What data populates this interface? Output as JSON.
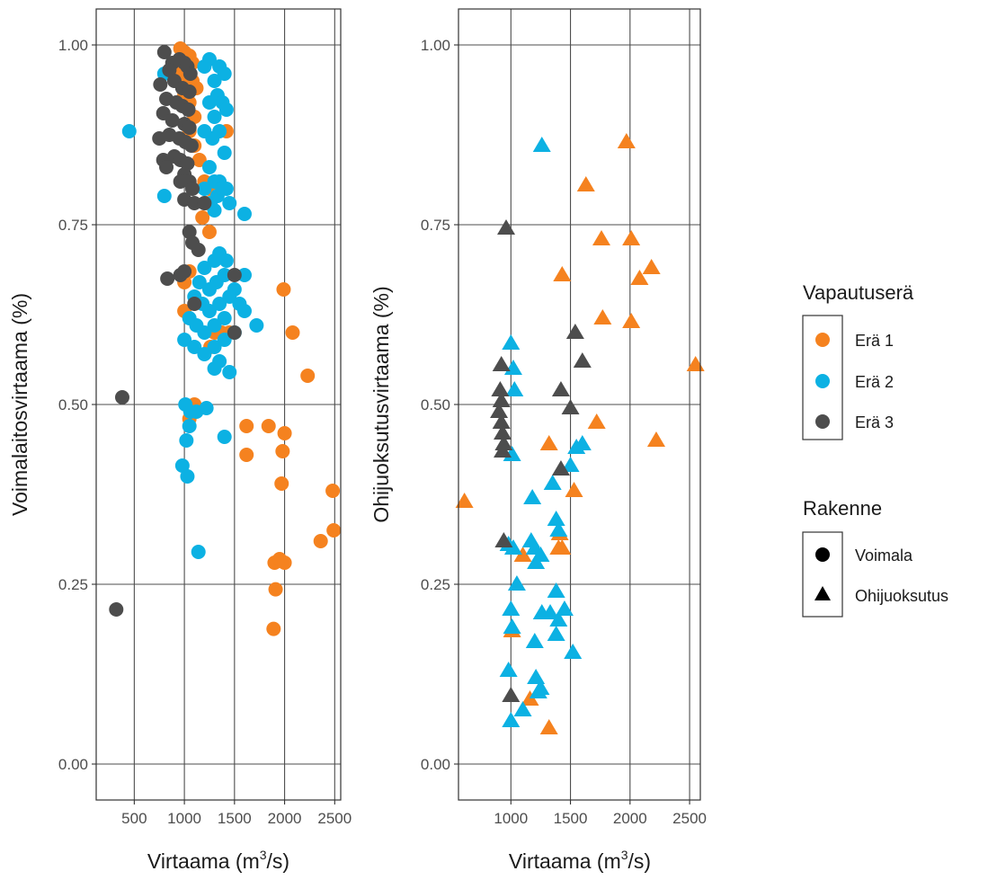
{
  "legend": {
    "group_title": "Vapautuserä",
    "group_items": [
      {
        "label": "Erä 1",
        "color": "#F5821F"
      },
      {
        "label": "Erä 2",
        "color": "#0CB1E3"
      },
      {
        "label": "Erä 3",
        "color": "#4D4D4D"
      }
    ],
    "shape_title": "Rakenne",
    "shape_items": [
      {
        "label": "Voimala",
        "shape": "circle"
      },
      {
        "label": "Ohijuoksutus",
        "shape": "triangle"
      }
    ]
  },
  "chart_data": [
    {
      "type": "scatter",
      "xlabel_main": "Virtaama (m",
      "xlabel_sup": "3",
      "xlabel_tail": "/s)",
      "ylabel": "Voimalaitosvirtaama (%)",
      "xlim": [
        120,
        2560
      ],
      "ylim": [
        -0.05,
        1.05
      ],
      "x_ticks": [
        500,
        1000,
        1500,
        2000,
        2500
      ],
      "x_tick_labels": [
        "500",
        "1000",
        "1500",
        "2000",
        "2500"
      ],
      "y_ticks": [
        0,
        0.25,
        0.5,
        0.75,
        1.0
      ],
      "y_tick_labels": [
        "0.00",
        "0.25",
        "0.50",
        "0.75",
        "1.00"
      ],
      "grid": true,
      "marker": "circle",
      "series": [
        {
          "name": "Erä 1",
          "points": [
            [
              960,
              0.995
            ],
            [
              1000,
              0.99
            ],
            [
              1050,
              0.985
            ],
            [
              1080,
              0.975
            ],
            [
              900,
              0.97
            ],
            [
              950,
              0.96
            ],
            [
              1000,
              0.955
            ],
            [
              1080,
              0.95
            ],
            [
              1120,
              0.94
            ],
            [
              1000,
              0.93
            ],
            [
              1050,
              0.92
            ],
            [
              1100,
              0.9
            ],
            [
              1050,
              0.88
            ],
            [
              1100,
              0.86
            ],
            [
              1150,
              0.84
            ],
            [
              1200,
              0.81
            ],
            [
              1250,
              0.8
            ],
            [
              1220,
              0.78
            ],
            [
              1180,
              0.76
            ],
            [
              1250,
              0.74
            ],
            [
              1420,
              0.88
            ],
            [
              1300,
              0.6
            ],
            [
              1260,
              0.58
            ],
            [
              1370,
              0.6
            ],
            [
              1450,
              0.6
            ],
            [
              1100,
              0.5
            ],
            [
              1050,
              0.48
            ],
            [
              1050,
              0.685
            ],
            [
              1000,
              0.67
            ],
            [
              1000,
              0.63
            ],
            [
              1990,
              0.66
            ],
            [
              2080,
              0.6
            ],
            [
              2230,
              0.54
            ],
            [
              1620,
              0.47
            ],
            [
              1840,
              0.47
            ],
            [
              2000,
              0.46
            ],
            [
              1620,
              0.43
            ],
            [
              1980,
              0.435
            ],
            [
              1970,
              0.39
            ],
            [
              2480,
              0.38
            ],
            [
              2490,
              0.325
            ],
            [
              2360,
              0.31
            ],
            [
              1900,
              0.28
            ],
            [
              1950,
              0.285
            ],
            [
              2000,
              0.28
            ],
            [
              1910,
              0.243
            ],
            [
              1890,
              0.188
            ]
          ]
        },
        {
          "name": "Erä 2",
          "points": [
            [
              450,
              0.88
            ],
            [
              800,
              0.96
            ],
            [
              1200,
              0.97
            ],
            [
              1250,
              0.98
            ],
            [
              1300,
              0.95
            ],
            [
              1330,
              0.93
            ],
            [
              1350,
              0.97
            ],
            [
              1400,
              0.96
            ],
            [
              1250,
              0.92
            ],
            [
              1300,
              0.9
            ],
            [
              1380,
              0.92
            ],
            [
              1420,
              0.91
            ],
            [
              1200,
              0.88
            ],
            [
              1280,
              0.87
            ],
            [
              1350,
              0.88
            ],
            [
              1400,
              0.85
            ],
            [
              1250,
              0.83
            ],
            [
              1300,
              0.81
            ],
            [
              1350,
              0.81
            ],
            [
              1420,
              0.8
            ],
            [
              1200,
              0.8
            ],
            [
              1260,
              0.78
            ],
            [
              1330,
              0.79
            ],
            [
              1380,
              0.8
            ],
            [
              1450,
              0.78
            ],
            [
              1300,
              0.77
            ],
            [
              1600,
              0.765
            ],
            [
              800,
              0.79
            ],
            [
              1300,
              0.7
            ],
            [
              1350,
              0.71
            ],
            [
              1420,
              0.7
            ],
            [
              1200,
              0.69
            ],
            [
              1150,
              0.67
            ],
            [
              1250,
              0.66
            ],
            [
              1320,
              0.67
            ],
            [
              1400,
              0.68
            ],
            [
              1500,
              0.66
            ],
            [
              1600,
              0.68
            ],
            [
              1100,
              0.65
            ],
            [
              1180,
              0.64
            ],
            [
              1250,
              0.63
            ],
            [
              1350,
              0.64
            ],
            [
              1450,
              0.65
            ],
            [
              1550,
              0.64
            ],
            [
              1050,
              0.62
            ],
            [
              1120,
              0.61
            ],
            [
              1200,
              0.6
            ],
            [
              1300,
              0.61
            ],
            [
              1400,
              0.62
            ],
            [
              1500,
              0.6
            ],
            [
              1720,
              0.61
            ],
            [
              1000,
              0.59
            ],
            [
              1100,
              0.58
            ],
            [
              1200,
              0.57
            ],
            [
              1300,
              0.58
            ],
            [
              1400,
              0.59
            ],
            [
              1350,
              0.56
            ],
            [
              1300,
              0.55
            ],
            [
              1450,
              0.545
            ],
            [
              1010,
              0.5
            ],
            [
              1060,
              0.49
            ],
            [
              1120,
              0.49
            ],
            [
              1220,
              0.495
            ],
            [
              1050,
              0.47
            ],
            [
              1020,
              0.45
            ],
            [
              1400,
              0.455
            ],
            [
              980,
              0.415
            ],
            [
              1030,
              0.4
            ],
            [
              1140,
              0.295
            ],
            [
              1600,
              0.63
            ]
          ]
        },
        {
          "name": "Erä 3",
          "points": [
            [
              800,
              0.99
            ],
            [
              880,
              0.975
            ],
            [
              950,
              0.98
            ],
            [
              1000,
              0.975
            ],
            [
              1030,
              0.97
            ],
            [
              850,
              0.965
            ],
            [
              1060,
              0.96
            ],
            [
              760,
              0.945
            ],
            [
              900,
              0.95
            ],
            [
              980,
              0.94
            ],
            [
              1050,
              0.935
            ],
            [
              820,
              0.925
            ],
            [
              920,
              0.92
            ],
            [
              980,
              0.915
            ],
            [
              1040,
              0.91
            ],
            [
              790,
              0.905
            ],
            [
              880,
              0.895
            ],
            [
              1000,
              0.89
            ],
            [
              1050,
              0.885
            ],
            [
              750,
              0.87
            ],
            [
              850,
              0.875
            ],
            [
              950,
              0.87
            ],
            [
              1010,
              0.865
            ],
            [
              1070,
              0.86
            ],
            [
              790,
              0.84
            ],
            [
              900,
              0.845
            ],
            [
              960,
              0.84
            ],
            [
              1030,
              0.835
            ],
            [
              820,
              0.83
            ],
            [
              1000,
              0.82
            ],
            [
              1050,
              0.81
            ],
            [
              960,
              0.81
            ],
            [
              1080,
              0.8
            ],
            [
              1000,
              0.785
            ],
            [
              1100,
              0.78
            ],
            [
              1200,
              0.78
            ],
            [
              1050,
              0.74
            ],
            [
              1080,
              0.725
            ],
            [
              1140,
              0.715
            ],
            [
              960,
              0.68
            ],
            [
              830,
              0.675
            ],
            [
              1000,
              0.685
            ],
            [
              1500,
              0.68
            ],
            [
              1100,
              0.64
            ],
            [
              1500,
              0.6
            ],
            [
              380,
              0.51
            ],
            [
              320,
              0.215
            ]
          ]
        }
      ]
    },
    {
      "type": "scatter",
      "xlabel_main": "Virtaama (m",
      "xlabel_sup": "3",
      "xlabel_tail": "/s)",
      "ylabel": "Ohijuoksutusvirtaama (%)",
      "xlim": [
        560,
        2590
      ],
      "ylim": [
        -0.05,
        1.05
      ],
      "x_ticks": [
        1000,
        1500,
        2000,
        2500
      ],
      "x_tick_labels": [
        "1000",
        "1500",
        "2000",
        "2500"
      ],
      "y_ticks": [
        0,
        0.25,
        0.5,
        0.75,
        1.0
      ],
      "y_tick_labels": [
        "0.00",
        "0.25",
        "0.50",
        "0.75",
        "1.00"
      ],
      "grid": true,
      "marker": "triangle",
      "series": [
        {
          "name": "Erä 1",
          "points": [
            [
              1970,
              0.865
            ],
            [
              1630,
              0.805
            ],
            [
              1760,
              0.73
            ],
            [
              2010,
              0.73
            ],
            [
              1430,
              0.68
            ],
            [
              2080,
              0.675
            ],
            [
              2180,
              0.69
            ],
            [
              1770,
              0.62
            ],
            [
              2010,
              0.615
            ],
            [
              2550,
              0.555
            ],
            [
              1720,
              0.475
            ],
            [
              1320,
              0.445
            ],
            [
              2220,
              0.45
            ],
            [
              1530,
              0.38
            ],
            [
              610,
              0.365
            ],
            [
              1410,
              0.32
            ],
            [
              1400,
              0.3
            ],
            [
              1430,
              0.3
            ],
            [
              1100,
              0.29
            ],
            [
              1010,
              0.185
            ],
            [
              1160,
              0.09
            ],
            [
              1320,
              0.05
            ]
          ]
        },
        {
          "name": "Erä 2",
          "points": [
            [
              1260,
              0.86
            ],
            [
              1000,
              0.585
            ],
            [
              1020,
              0.55
            ],
            [
              1030,
              0.52
            ],
            [
              1010,
              0.43
            ],
            [
              1350,
              0.39
            ],
            [
              1380,
              0.34
            ],
            [
              1400,
              0.325
            ],
            [
              1180,
              0.37
            ],
            [
              1500,
              0.415
            ],
            [
              1550,
              0.44
            ],
            [
              1600,
              0.445
            ],
            [
              980,
              0.305
            ],
            [
              1020,
              0.3
            ],
            [
              1170,
              0.31
            ],
            [
              1200,
              0.3
            ],
            [
              1250,
              0.29
            ],
            [
              1210,
              0.28
            ],
            [
              1050,
              0.25
            ],
            [
              1380,
              0.24
            ],
            [
              1000,
              0.215
            ],
            [
              1260,
              0.21
            ],
            [
              1330,
              0.21
            ],
            [
              1450,
              0.215
            ],
            [
              1400,
              0.2
            ],
            [
              1010,
              0.19
            ],
            [
              1200,
              0.17
            ],
            [
              1380,
              0.18
            ],
            [
              1210,
              0.12
            ],
            [
              1250,
              0.105
            ],
            [
              1520,
              0.155
            ],
            [
              980,
              0.13
            ],
            [
              1230,
              0.1
            ],
            [
              1100,
              0.075
            ],
            [
              1000,
              0.06
            ]
          ]
        },
        {
          "name": "Erä 3",
          "points": [
            [
              960,
              0.745
            ],
            [
              920,
              0.555
            ],
            [
              1420,
              0.52
            ],
            [
              1540,
              0.6
            ],
            [
              1600,
              0.56
            ],
            [
              910,
              0.52
            ],
            [
              920,
              0.505
            ],
            [
              900,
              0.49
            ],
            [
              1500,
              0.495
            ],
            [
              920,
              0.475
            ],
            [
              930,
              0.46
            ],
            [
              940,
              0.445
            ],
            [
              930,
              0.435
            ],
            [
              1420,
              0.41
            ],
            [
              940,
              0.31
            ],
            [
              1000,
              0.095
            ]
          ]
        }
      ]
    }
  ]
}
